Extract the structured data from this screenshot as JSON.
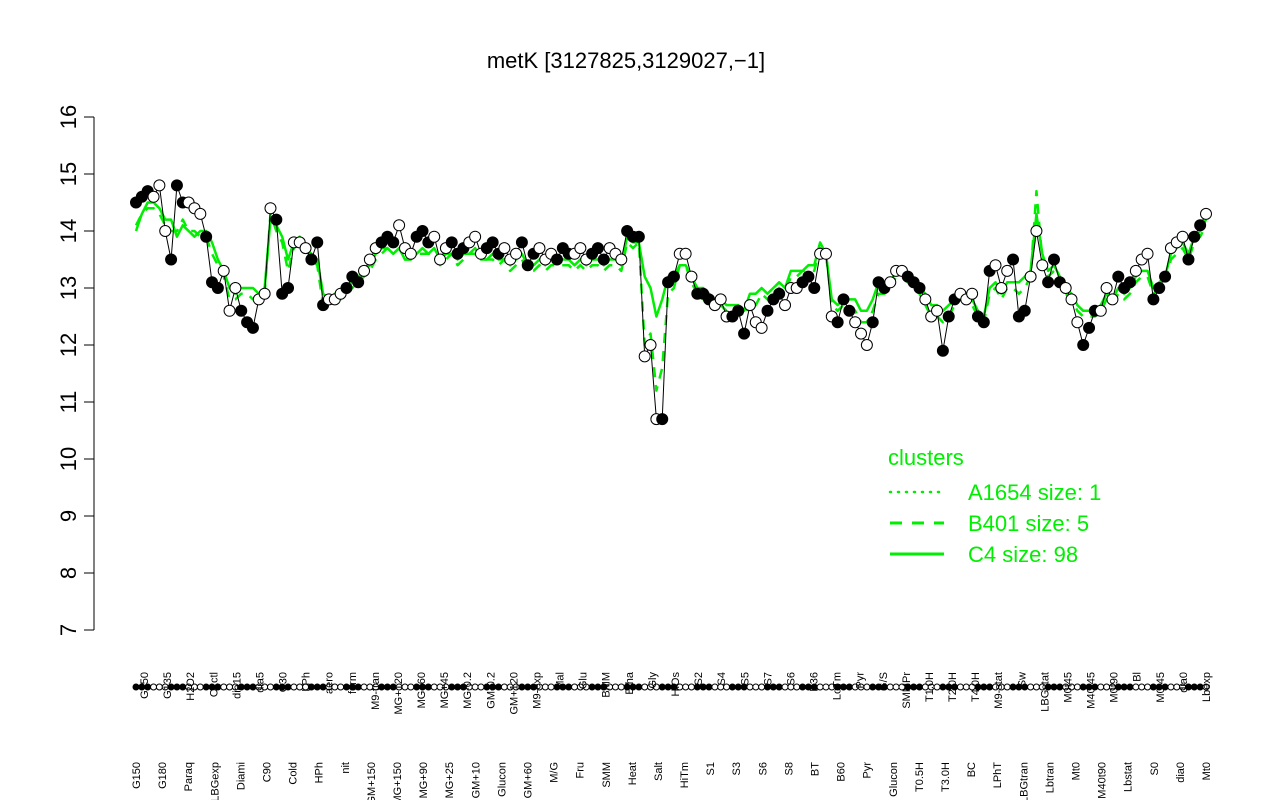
{
  "chart_data": {
    "type": "scatter",
    "title": "metK [3127825,3129027,−1]",
    "xlabel": "",
    "ylabel": "",
    "ylim": [
      7,
      16
    ],
    "yticks": [
      "7",
      "8",
      "9",
      "10",
      "11",
      "12",
      "13",
      "14",
      "15",
      "16"
    ],
    "grid": false,
    "legend_position": "bottom-right",
    "legend": {
      "title": "clusters",
      "items": [
        {
          "label": "A1654 size: 1",
          "style": "dotted"
        },
        {
          "label": "B401 size: 5",
          "style": "dashed"
        },
        {
          "label": "C4 size: 98",
          "style": "solid"
        }
      ]
    },
    "tick_labels_top": [
      "G150",
      "G135",
      "H2O2",
      "Oxctl",
      "dia15",
      "dia5",
      "C30",
      "LPh",
      "aero",
      "ferm",
      "M9-tran",
      "MG+120",
      "MG+60",
      "MG+45",
      "MG-0.2",
      "GM-0.2",
      "GM+120",
      "M9-exp",
      "Mal",
      "Glu",
      "BMM",
      "Etha",
      "Gly",
      "HiOs",
      "S2",
      "S4",
      "S5",
      "S7",
      "S6",
      "B36",
      "LoTm",
      "Pyr",
      "G/S",
      "SMMPr",
      "T1.0H",
      "T2.0H",
      "T4.0H",
      "M9-stat",
      "Sw",
      "LBGstat",
      "M0t45",
      "M40t45",
      "M0t90",
      "Bl",
      "M0t45",
      "dia0",
      "Lbexp"
    ],
    "tick_labels_bottom": [
      "G150",
      "G180",
      "Paraq",
      "LBGexp",
      "Diami",
      "C90",
      "Cold",
      "HPh",
      "nit",
      "GM+150",
      "MG+150",
      "MG+90",
      "MG+25",
      "GM+10",
      "Glucon",
      "GM+60",
      "M/G",
      "Fru",
      "SMM",
      "Heat",
      "Salt",
      "HiTm",
      "S1",
      "S3",
      "S6",
      "S8",
      "BT",
      "B60",
      "Pyr",
      "Glucon",
      "T0.5H",
      "T3.0H",
      "BC",
      "LPhT",
      "LBGtran",
      "Lbtran",
      "Mt0",
      "M40t90",
      "Lbstat",
      "S0",
      "dia0",
      "Mt0"
    ],
    "series": [
      {
        "name": "",
        "values": [
          14.5,
          14.6,
          14.7,
          14.6,
          14.8,
          14.0,
          13.5,
          14.8,
          14.5,
          14.5,
          14.4,
          14.3,
          13.9,
          13.1,
          13.0,
          13.3,
          12.6,
          13.0,
          12.6,
          12.4,
          12.3,
          12.8,
          12.9,
          14.4,
          14.2,
          12.9,
          13.0,
          13.8,
          13.8,
          13.7,
          13.5,
          13.8,
          12.7,
          12.8,
          12.8,
          12.9,
          13.0,
          13.2,
          13.1,
          13.3,
          13.5,
          13.7,
          13.8,
          13.9,
          13.8,
          14.1,
          13.7,
          13.6,
          13.9,
          14.0,
          13.8,
          13.9,
          13.5,
          13.7,
          13.8,
          13.6,
          13.7,
          13.8,
          13.9,
          13.6,
          13.7,
          13.8,
          13.6,
          13.7,
          13.5,
          13.6,
          13.8,
          13.4,
          13.6,
          13.7,
          13.5,
          13.6,
          13.5,
          13.7,
          13.6,
          13.6,
          13.7,
          13.5,
          13.6,
          13.7,
          13.5,
          13.7,
          13.6,
          13.5,
          14.0,
          13.9,
          13.9,
          11.8,
          12.0,
          10.7,
          10.7,
          13.1,
          13.2,
          13.6,
          13.6,
          13.2,
          12.9,
          12.9,
          12.8,
          12.7,
          12.8,
          12.5,
          12.5,
          12.6,
          12.2,
          12.7,
          12.4,
          12.3,
          12.6,
          12.8,
          12.9,
          12.7,
          13.0,
          13.0,
          13.1,
          13.2,
          13.0,
          13.6,
          13.6,
          12.5,
          12.4,
          12.8,
          12.6,
          12.4,
          12.2,
          12.0,
          12.4,
          13.1,
          13.0,
          13.1,
          13.3,
          13.3,
          13.2,
          13.1,
          13.0,
          12.8,
          12.5,
          12.6,
          11.9,
          12.5,
          12.8,
          12.9,
          12.8,
          12.9,
          12.5,
          12.4,
          13.3,
          13.4,
          13.0,
          13.3,
          13.5,
          12.5,
          12.6,
          13.2,
          14.0,
          13.4,
          13.1,
          13.5,
          13.1,
          13.0,
          12.8,
          12.4,
          12.0,
          12.3,
          12.6,
          12.6,
          13.0,
          12.8,
          13.2,
          13.0,
          13.1,
          13.3,
          13.5,
          13.6,
          12.8,
          13.0,
          13.2,
          13.7,
          13.8,
          13.9,
          13.5,
          13.9,
          14.1,
          14.3
        ]
      },
      {
        "name": "C4 size: 98",
        "values": [
          14.0,
          14.3,
          14.5,
          14.5,
          14.4,
          14.2,
          14.2,
          13.9,
          14.1,
          14.0,
          13.9,
          14.0,
          14.0,
          13.8,
          13.5,
          13.3,
          13.0,
          12.9,
          13.0,
          13.0,
          13.0,
          12.9,
          13.0,
          14.2,
          14.1,
          13.9,
          13.5,
          13.8,
          13.9,
          13.7,
          13.6,
          13.5,
          12.9,
          12.8,
          12.9,
          12.9,
          13.0,
          13.1,
          13.2,
          13.3,
          13.4,
          13.6,
          13.7,
          13.7,
          13.6,
          13.7,
          13.5,
          13.5,
          13.6,
          13.7,
          13.6,
          13.7,
          13.5,
          13.6,
          13.6,
          13.5,
          13.6,
          13.6,
          13.7,
          13.5,
          13.5,
          13.6,
          13.5,
          13.5,
          13.4,
          13.5,
          13.6,
          13.4,
          13.4,
          13.5,
          13.4,
          13.5,
          13.5,
          13.5,
          13.5,
          13.4,
          13.5,
          13.4,
          13.5,
          13.5,
          13.4,
          13.5,
          13.5,
          13.4,
          13.9,
          13.8,
          13.8,
          13.2,
          13.0,
          12.5,
          12.8,
          13.2,
          13.2,
          13.4,
          13.4,
          13.2,
          13.0,
          13.0,
          12.9,
          12.8,
          12.8,
          12.7,
          12.7,
          12.7,
          12.6,
          12.9,
          12.9,
          13.0,
          12.9,
          13.0,
          13.1,
          13.0,
          13.3,
          13.3,
          13.3,
          13.4,
          13.4,
          13.8,
          13.6,
          12.8,
          12.7,
          12.8,
          12.8,
          12.8,
          12.6,
          12.6,
          12.8,
          13.1,
          13.1,
          13.1,
          13.3,
          13.3,
          13.2,
          13.1,
          13.0,
          12.9,
          12.7,
          12.7,
          12.6,
          12.7,
          12.8,
          12.9,
          12.8,
          12.8,
          12.6,
          12.5,
          13.0,
          13.1,
          12.9,
          13.1,
          13.1,
          13.1,
          13.2,
          13.3,
          14.3,
          13.6,
          13.3,
          13.4,
          13.2,
          13.0,
          12.9,
          12.7,
          12.6,
          12.6,
          12.6,
          12.7,
          12.9,
          12.8,
          13.0,
          12.9,
          13.0,
          13.2,
          13.3,
          13.3,
          13.0,
          13.1,
          13.2,
          13.6,
          13.7,
          13.8,
          13.6,
          13.9,
          14.0,
          14.2
        ]
      },
      {
        "name": "B401 size: 5",
        "values": [
          14.1,
          14.3,
          14.4,
          14.4,
          14.3,
          14.1,
          14.0,
          14.0,
          14.2,
          14.0,
          14.0,
          13.9,
          13.9,
          13.6,
          13.4,
          13.2,
          12.8,
          12.8,
          12.9,
          12.9,
          12.8,
          12.8,
          12.9,
          14.3,
          14.0,
          13.8,
          13.3,
          13.7,
          13.8,
          13.7,
          13.5,
          13.4,
          12.7,
          12.7,
          12.8,
          12.8,
          12.9,
          13.0,
          13.1,
          13.2,
          13.3,
          13.5,
          13.6,
          13.7,
          13.6,
          13.7,
          13.5,
          13.5,
          13.6,
          13.6,
          13.6,
          13.6,
          13.4,
          13.5,
          13.6,
          13.4,
          13.5,
          13.6,
          13.6,
          13.5,
          13.5,
          13.5,
          13.4,
          13.5,
          13.3,
          13.4,
          13.5,
          13.3,
          13.3,
          13.4,
          13.3,
          13.4,
          13.4,
          13.4,
          13.4,
          13.3,
          13.4,
          13.3,
          13.4,
          13.4,
          13.3,
          13.4,
          13.4,
          13.3,
          13.8,
          13.7,
          13.8,
          12.0,
          12.2,
          11.2,
          11.6,
          12.9,
          13.0,
          13.4,
          13.4,
          13.1,
          12.9,
          12.8,
          12.8,
          12.7,
          12.7,
          12.6,
          12.6,
          12.6,
          12.5,
          12.8,
          12.7,
          12.9,
          12.8,
          12.9,
          13.0,
          12.9,
          13.2,
          13.2,
          13.3,
          13.3,
          13.3,
          13.7,
          13.6,
          12.7,
          12.6,
          12.7,
          12.7,
          12.6,
          12.4,
          12.4,
          12.6,
          12.9,
          12.9,
          13.0,
          13.2,
          13.2,
          13.1,
          13.0,
          12.9,
          12.7,
          12.5,
          12.5,
          12.4,
          12.5,
          12.7,
          12.8,
          12.7,
          12.7,
          12.5,
          12.4,
          12.9,
          13.0,
          12.8,
          13.0,
          13.0,
          12.9,
          13.0,
          13.2,
          14.7,
          13.5,
          13.2,
          13.3,
          13.1,
          12.9,
          12.8,
          12.6,
          12.5,
          12.5,
          12.5,
          12.6,
          12.8,
          12.7,
          12.9,
          12.8,
          12.9,
          13.1,
          13.2,
          13.2,
          12.9,
          13.0,
          13.1,
          13.5,
          13.6,
          13.7,
          13.5,
          13.8,
          13.9,
          14.1
        ]
      }
    ]
  }
}
